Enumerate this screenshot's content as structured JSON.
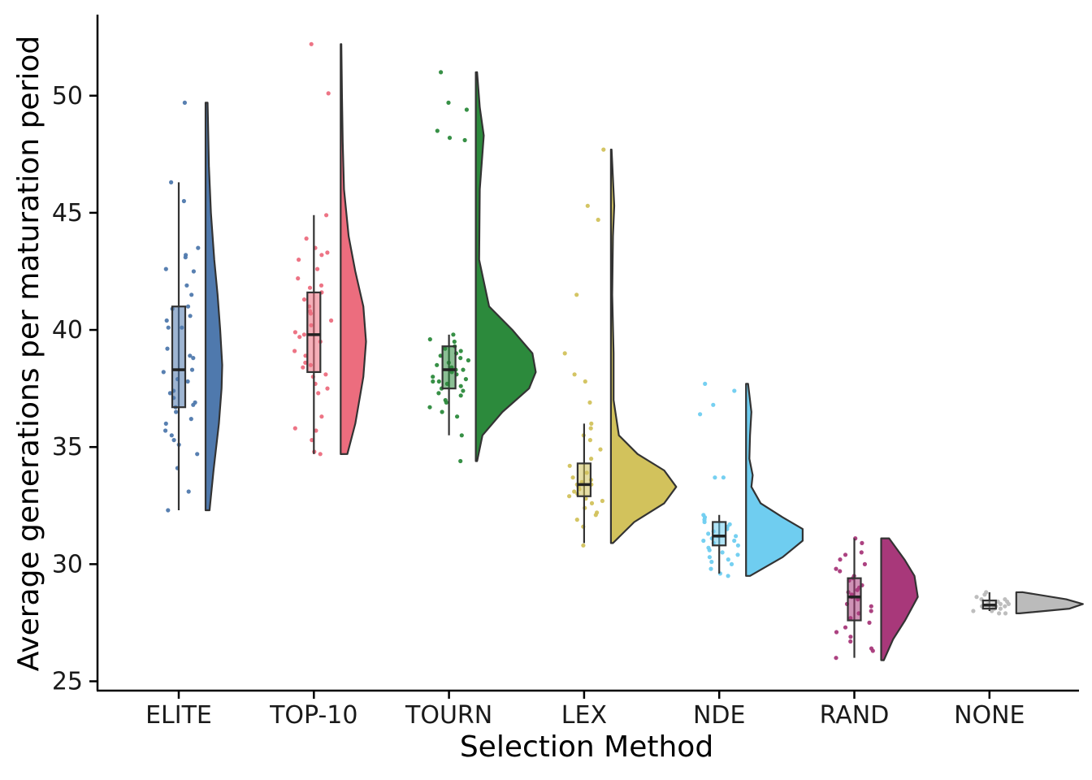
{
  "chart_data": {
    "type": "raincloud",
    "title": "",
    "xlabel": "Selection Method",
    "ylabel": "Average generations per maturation period",
    "ylim": [
      24.6,
      53.5
    ],
    "yticks": [
      25,
      30,
      35,
      40,
      45,
      50
    ],
    "categories": [
      "ELITE",
      "TOP-10",
      "TOURN",
      "LEX",
      "NDE",
      "RAND",
      "NONE"
    ],
    "colors": [
      "#4f79ad",
      "#ec6d7e",
      "#2c8a3c",
      "#d2c25c",
      "#6fcdf0",
      "#a8387a",
      "#bbbbbb"
    ],
    "series": [
      {
        "name": "ELITE",
        "min": 32.3,
        "q1": 36.7,
        "median": 38.3,
        "q3": 41.0,
        "max": 46.3,
        "points": [
          49.7,
          46.3,
          45.5,
          43.5,
          43.2,
          43.1,
          42.6,
          42.5,
          41.9,
          41.5,
          41.0,
          40.9,
          40.6,
          40.4,
          40.1,
          40.1,
          39.2,
          38.9,
          38.8,
          38.3,
          38.2,
          37.9,
          37.8,
          37.4,
          37.3,
          37.1,
          36.9,
          36.8,
          36.7,
          36.5,
          36.2,
          36.0,
          35.7,
          35.5,
          35.3,
          35.1,
          34.7,
          34.1,
          33.1,
          32.3
        ],
        "density": [
          [
            32.3,
            0.06
          ],
          [
            34.0,
            0.12
          ],
          [
            36.0,
            0.2
          ],
          [
            37.5,
            0.24
          ],
          [
            38.5,
            0.25
          ],
          [
            40.0,
            0.22
          ],
          [
            41.5,
            0.18
          ],
          [
            43.0,
            0.13
          ],
          [
            45.0,
            0.08
          ],
          [
            47.0,
            0.05
          ],
          [
            49.7,
            0.03
          ]
        ]
      },
      {
        "name": "TOP-10",
        "min": 34.7,
        "q1": 38.2,
        "median": 39.8,
        "q3": 41.6,
        "max": 44.9,
        "points": [
          52.2,
          50.1,
          44.9,
          43.9,
          43.5,
          43.3,
          43.2,
          43.0,
          42.6,
          42.2,
          41.9,
          41.8,
          41.6,
          41.3,
          41.0,
          40.8,
          40.7,
          40.4,
          40.2,
          39.9,
          39.8,
          39.7,
          39.5,
          39.1,
          38.9,
          38.6,
          38.5,
          38.4,
          38.1,
          38.0,
          37.7,
          37.5,
          37.3,
          36.3,
          35.8,
          35.7,
          35.3,
          34.8,
          34.7
        ],
        "density": [
          [
            34.7,
            0.1
          ],
          [
            36.0,
            0.22
          ],
          [
            38.0,
            0.34
          ],
          [
            39.5,
            0.38
          ],
          [
            41.0,
            0.34
          ],
          [
            42.5,
            0.22
          ],
          [
            44.0,
            0.12
          ],
          [
            46.0,
            0.05
          ],
          [
            48.0,
            0.03
          ],
          [
            50.0,
            0.02
          ],
          [
            52.2,
            0.01
          ]
        ]
      },
      {
        "name": "TOURN",
        "min": 35.5,
        "q1": 37.5,
        "median": 38.3,
        "q3": 39.3,
        "max": 39.8,
        "points": [
          51.0,
          49.7,
          49.4,
          48.5,
          48.2,
          48.1,
          39.8,
          39.6,
          39.5,
          39.3,
          39.2,
          39.1,
          39.0,
          38.9,
          38.8,
          38.7,
          38.6,
          38.5,
          38.4,
          38.3,
          38.3,
          38.2,
          38.1,
          38.0,
          37.9,
          37.8,
          37.8,
          37.7,
          37.6,
          37.5,
          37.4,
          37.3,
          37.2,
          37.0,
          36.9,
          36.7,
          36.5,
          36.3,
          35.5,
          34.4
        ],
        "density": [
          [
            34.4,
            0.02
          ],
          [
            35.5,
            0.1
          ],
          [
            36.5,
            0.4
          ],
          [
            37.5,
            0.8
          ],
          [
            38.2,
            0.9
          ],
          [
            39.0,
            0.85
          ],
          [
            40.0,
            0.55
          ],
          [
            41.0,
            0.2
          ],
          [
            43.0,
            0.05
          ],
          [
            46.0,
            0.06
          ],
          [
            48.3,
            0.12
          ],
          [
            49.5,
            0.06
          ],
          [
            51.0,
            0.02
          ]
        ]
      },
      {
        "name": "LEX",
        "min": 30.9,
        "q1": 32.9,
        "median": 33.4,
        "q3": 34.3,
        "max": 36.0,
        "points": [
          47.7,
          45.3,
          44.7,
          41.5,
          39.0,
          38.1,
          37.8,
          36.9,
          36.0,
          35.8,
          35.5,
          35.3,
          34.9,
          34.5,
          34.2,
          33.9,
          33.7,
          33.6,
          33.5,
          33.4,
          33.4,
          33.3,
          33.2,
          33.1,
          33.0,
          32.9,
          32.8,
          32.7,
          32.6,
          32.4,
          32.2,
          32.1,
          31.9,
          31.6,
          30.8
        ],
        "density": [
          [
            30.9,
            0.03
          ],
          [
            31.8,
            0.35
          ],
          [
            32.6,
            0.8
          ],
          [
            33.3,
            0.98
          ],
          [
            34.0,
            0.8
          ],
          [
            34.7,
            0.4
          ],
          [
            35.5,
            0.12
          ],
          [
            37.0,
            0.04
          ],
          [
            39.0,
            0.04
          ],
          [
            41.5,
            0.02
          ],
          [
            44.0,
            0.03
          ],
          [
            45.3,
            0.05
          ],
          [
            47.7,
            0.01
          ]
        ]
      },
      {
        "name": "NDE",
        "min": 29.6,
        "q1": 30.8,
        "median": 31.2,
        "q3": 31.8,
        "max": 32.1,
        "points": [
          37.7,
          37.4,
          36.8,
          36.4,
          33.7,
          33.7,
          32.1,
          32.0,
          31.9,
          31.8,
          31.7,
          31.6,
          31.5,
          31.4,
          31.3,
          31.2,
          31.2,
          31.1,
          31.0,
          31.0,
          30.9,
          30.8,
          30.7,
          30.6,
          30.5,
          30.4,
          30.3,
          30.2,
          30.1,
          30.0,
          29.8,
          29.6,
          29.5
        ],
        "density": [
          [
            29.5,
            0.06
          ],
          [
            30.3,
            0.55
          ],
          [
            31.0,
            0.85
          ],
          [
            31.5,
            0.85
          ],
          [
            32.0,
            0.55
          ],
          [
            32.6,
            0.22
          ],
          [
            33.3,
            0.08
          ],
          [
            33.8,
            0.1
          ],
          [
            34.5,
            0.05
          ],
          [
            35.5,
            0.06
          ],
          [
            36.5,
            0.08
          ],
          [
            37.7,
            0.03
          ]
        ]
      },
      {
        "name": "RAND",
        "min": 26.0,
        "q1": 27.6,
        "median": 28.6,
        "q3": 29.4,
        "max": 31.1,
        "points": [
          31.1,
          30.9,
          30.5,
          30.4,
          30.2,
          30.0,
          29.8,
          29.7,
          29.5,
          29.4,
          29.3,
          29.1,
          29.0,
          28.9,
          28.8,
          28.7,
          28.6,
          28.5,
          28.3,
          28.2,
          28.0,
          27.9,
          27.7,
          27.5,
          27.3,
          27.1,
          26.9,
          26.7,
          26.4,
          26.3,
          26.0
        ],
        "density": [
          [
            25.9,
            0.04
          ],
          [
            26.8,
            0.18
          ],
          [
            27.6,
            0.36
          ],
          [
            28.6,
            0.55
          ],
          [
            29.5,
            0.5
          ],
          [
            30.2,
            0.35
          ],
          [
            31.1,
            0.12
          ]
        ]
      },
      {
        "name": "NONE",
        "min": 28.0,
        "q1": 28.1,
        "median": 28.25,
        "q3": 28.45,
        "max": 28.8,
        "points": [
          28.8,
          28.7,
          28.6,
          28.5,
          28.5,
          28.4,
          28.4,
          28.3,
          28.3,
          28.3,
          28.2,
          28.2,
          28.2,
          28.1,
          28.1,
          28.1,
          28.0,
          28.0,
          27.9,
          27.9
        ],
        "density": [
          [
            27.9,
            0.05
          ],
          [
            28.1,
            0.8
          ],
          [
            28.3,
            1.0
          ],
          [
            28.5,
            0.75
          ],
          [
            28.8,
            0.1
          ]
        ]
      }
    ]
  }
}
